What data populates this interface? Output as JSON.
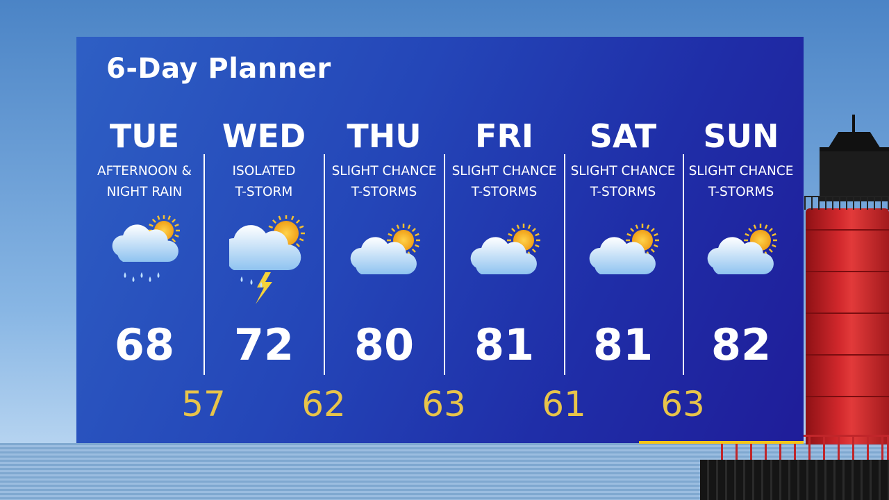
{
  "title": "6-Day Planner",
  "colors": {
    "panel": "#2446b8",
    "low_temp": "#e8c44a",
    "accent_bar": "#f5c518"
  },
  "days": [
    {
      "day": "TUE",
      "line1": "AFTERNOON &",
      "line2": "NIGHT RAIN",
      "icon": "rain-partly-sunny-icon",
      "high": "68"
    },
    {
      "day": "WED",
      "line1": "ISOLATED",
      "line2": "T-STORM",
      "icon": "thunderstorm-partly-sunny-icon",
      "high": "72"
    },
    {
      "day": "THU",
      "line1": "SLIGHT CHANCE",
      "line2": "T-STORMS",
      "icon": "partly-sunny-icon",
      "high": "80"
    },
    {
      "day": "FRI",
      "line1": "SLIGHT CHANCE",
      "line2": "T-STORMS",
      "icon": "partly-sunny-icon",
      "high": "81"
    },
    {
      "day": "SAT",
      "line1": "SLIGHT CHANCE",
      "line2": "T-STORMS",
      "icon": "partly-sunny-icon",
      "high": "81"
    },
    {
      "day": "SUN",
      "line1": "SLIGHT CHANCE",
      "line2": "T-STORMS",
      "icon": "partly-sunny-icon",
      "high": "82"
    }
  ],
  "lows": [
    "57",
    "62",
    "63",
    "61",
    "63"
  ]
}
